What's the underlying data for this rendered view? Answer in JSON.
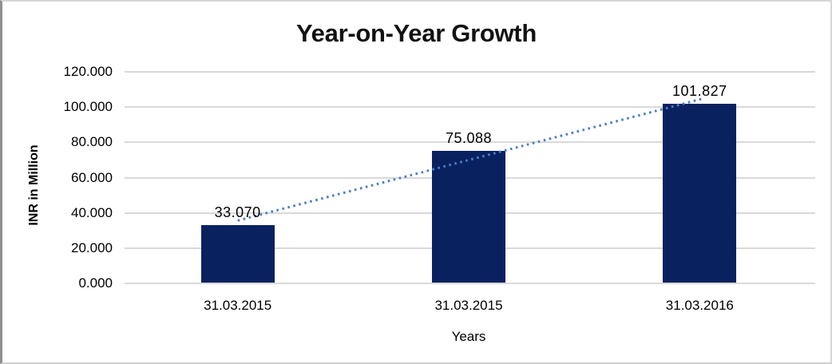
{
  "chart_data": {
    "type": "bar",
    "title": "Year-on-Year Growth",
    "xlabel": "Years",
    "ylabel": "INR in Million",
    "categories": [
      "31.03.2015",
      "31.03.2015",
      "31.03.2016"
    ],
    "series": [
      {
        "name": "INR in Million",
        "values": [
          33.07,
          75.088,
          101.827
        ]
      }
    ],
    "value_labels": [
      "33.070",
      "75.088",
      "101.827"
    ],
    "ylim": [
      0,
      120
    ],
    "ytick_values": [
      0,
      20,
      40,
      60,
      80,
      100,
      120
    ],
    "ytick_labels": [
      "0.000",
      "20.000",
      "40.000",
      "60.000",
      "80.000",
      "100.000",
      "120.000"
    ],
    "grid": "horizontal",
    "legend_position": "none",
    "trendline": {
      "type": "linear",
      "style": "dotted"
    },
    "colors": {
      "bar": "#0A2160",
      "trendline": "#4A7EC4",
      "gridline": "#D9D9D9",
      "axis_line": "#D9D9D9",
      "text": "#000000"
    }
  }
}
